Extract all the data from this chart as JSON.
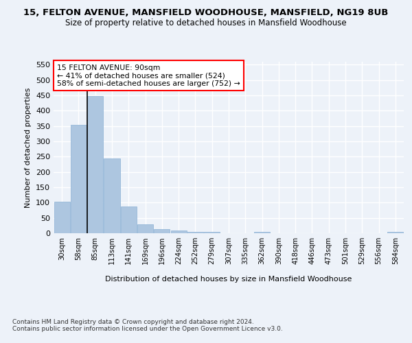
{
  "title_line1": "15, FELTON AVENUE, MANSFIELD WOODHOUSE, MANSFIELD, NG19 8UB",
  "title_line2": "Size of property relative to detached houses in Mansfield Woodhouse",
  "xlabel": "Distribution of detached houses by size in Mansfield Woodhouse",
  "ylabel": "Number of detached properties",
  "footnote": "Contains HM Land Registry data © Crown copyright and database right 2024.\nContains public sector information licensed under the Open Government Licence v3.0.",
  "bin_labels": [
    "30sqm",
    "58sqm",
    "85sqm",
    "113sqm",
    "141sqm",
    "169sqm",
    "196sqm",
    "224sqm",
    "252sqm",
    "279sqm",
    "307sqm",
    "335sqm",
    "362sqm",
    "390sqm",
    "418sqm",
    "446sqm",
    "473sqm",
    "501sqm",
    "529sqm",
    "556sqm",
    "584sqm"
  ],
  "bar_values": [
    103,
    353,
    449,
    245,
    87,
    30,
    13,
    9,
    5,
    5,
    0,
    0,
    5,
    0,
    0,
    0,
    0,
    0,
    0,
    0,
    5
  ],
  "bar_color": "#adc6e0",
  "bar_edge_color": "#8ab0d4",
  "property_line_bin": 2,
  "property_sqm": 90,
  "property_label": "15 FELTON AVENUE: 90sqm",
  "annotation_line1": "← 41% of detached houses are smaller (524)",
  "annotation_line2": "58% of semi-detached houses are larger (752) →",
  "annotation_box_color": "white",
  "annotation_box_edge": "red",
  "vline_color": "black",
  "ylim": [
    0,
    560
  ],
  "yticks": [
    0,
    50,
    100,
    150,
    200,
    250,
    300,
    350,
    400,
    450,
    500,
    550
  ],
  "bg_color": "#edf2f9",
  "plot_bg_color": "#edf2f9",
  "grid_color": "white",
  "title_fontsize": 9.5,
  "subtitle_fontsize": 8.5
}
